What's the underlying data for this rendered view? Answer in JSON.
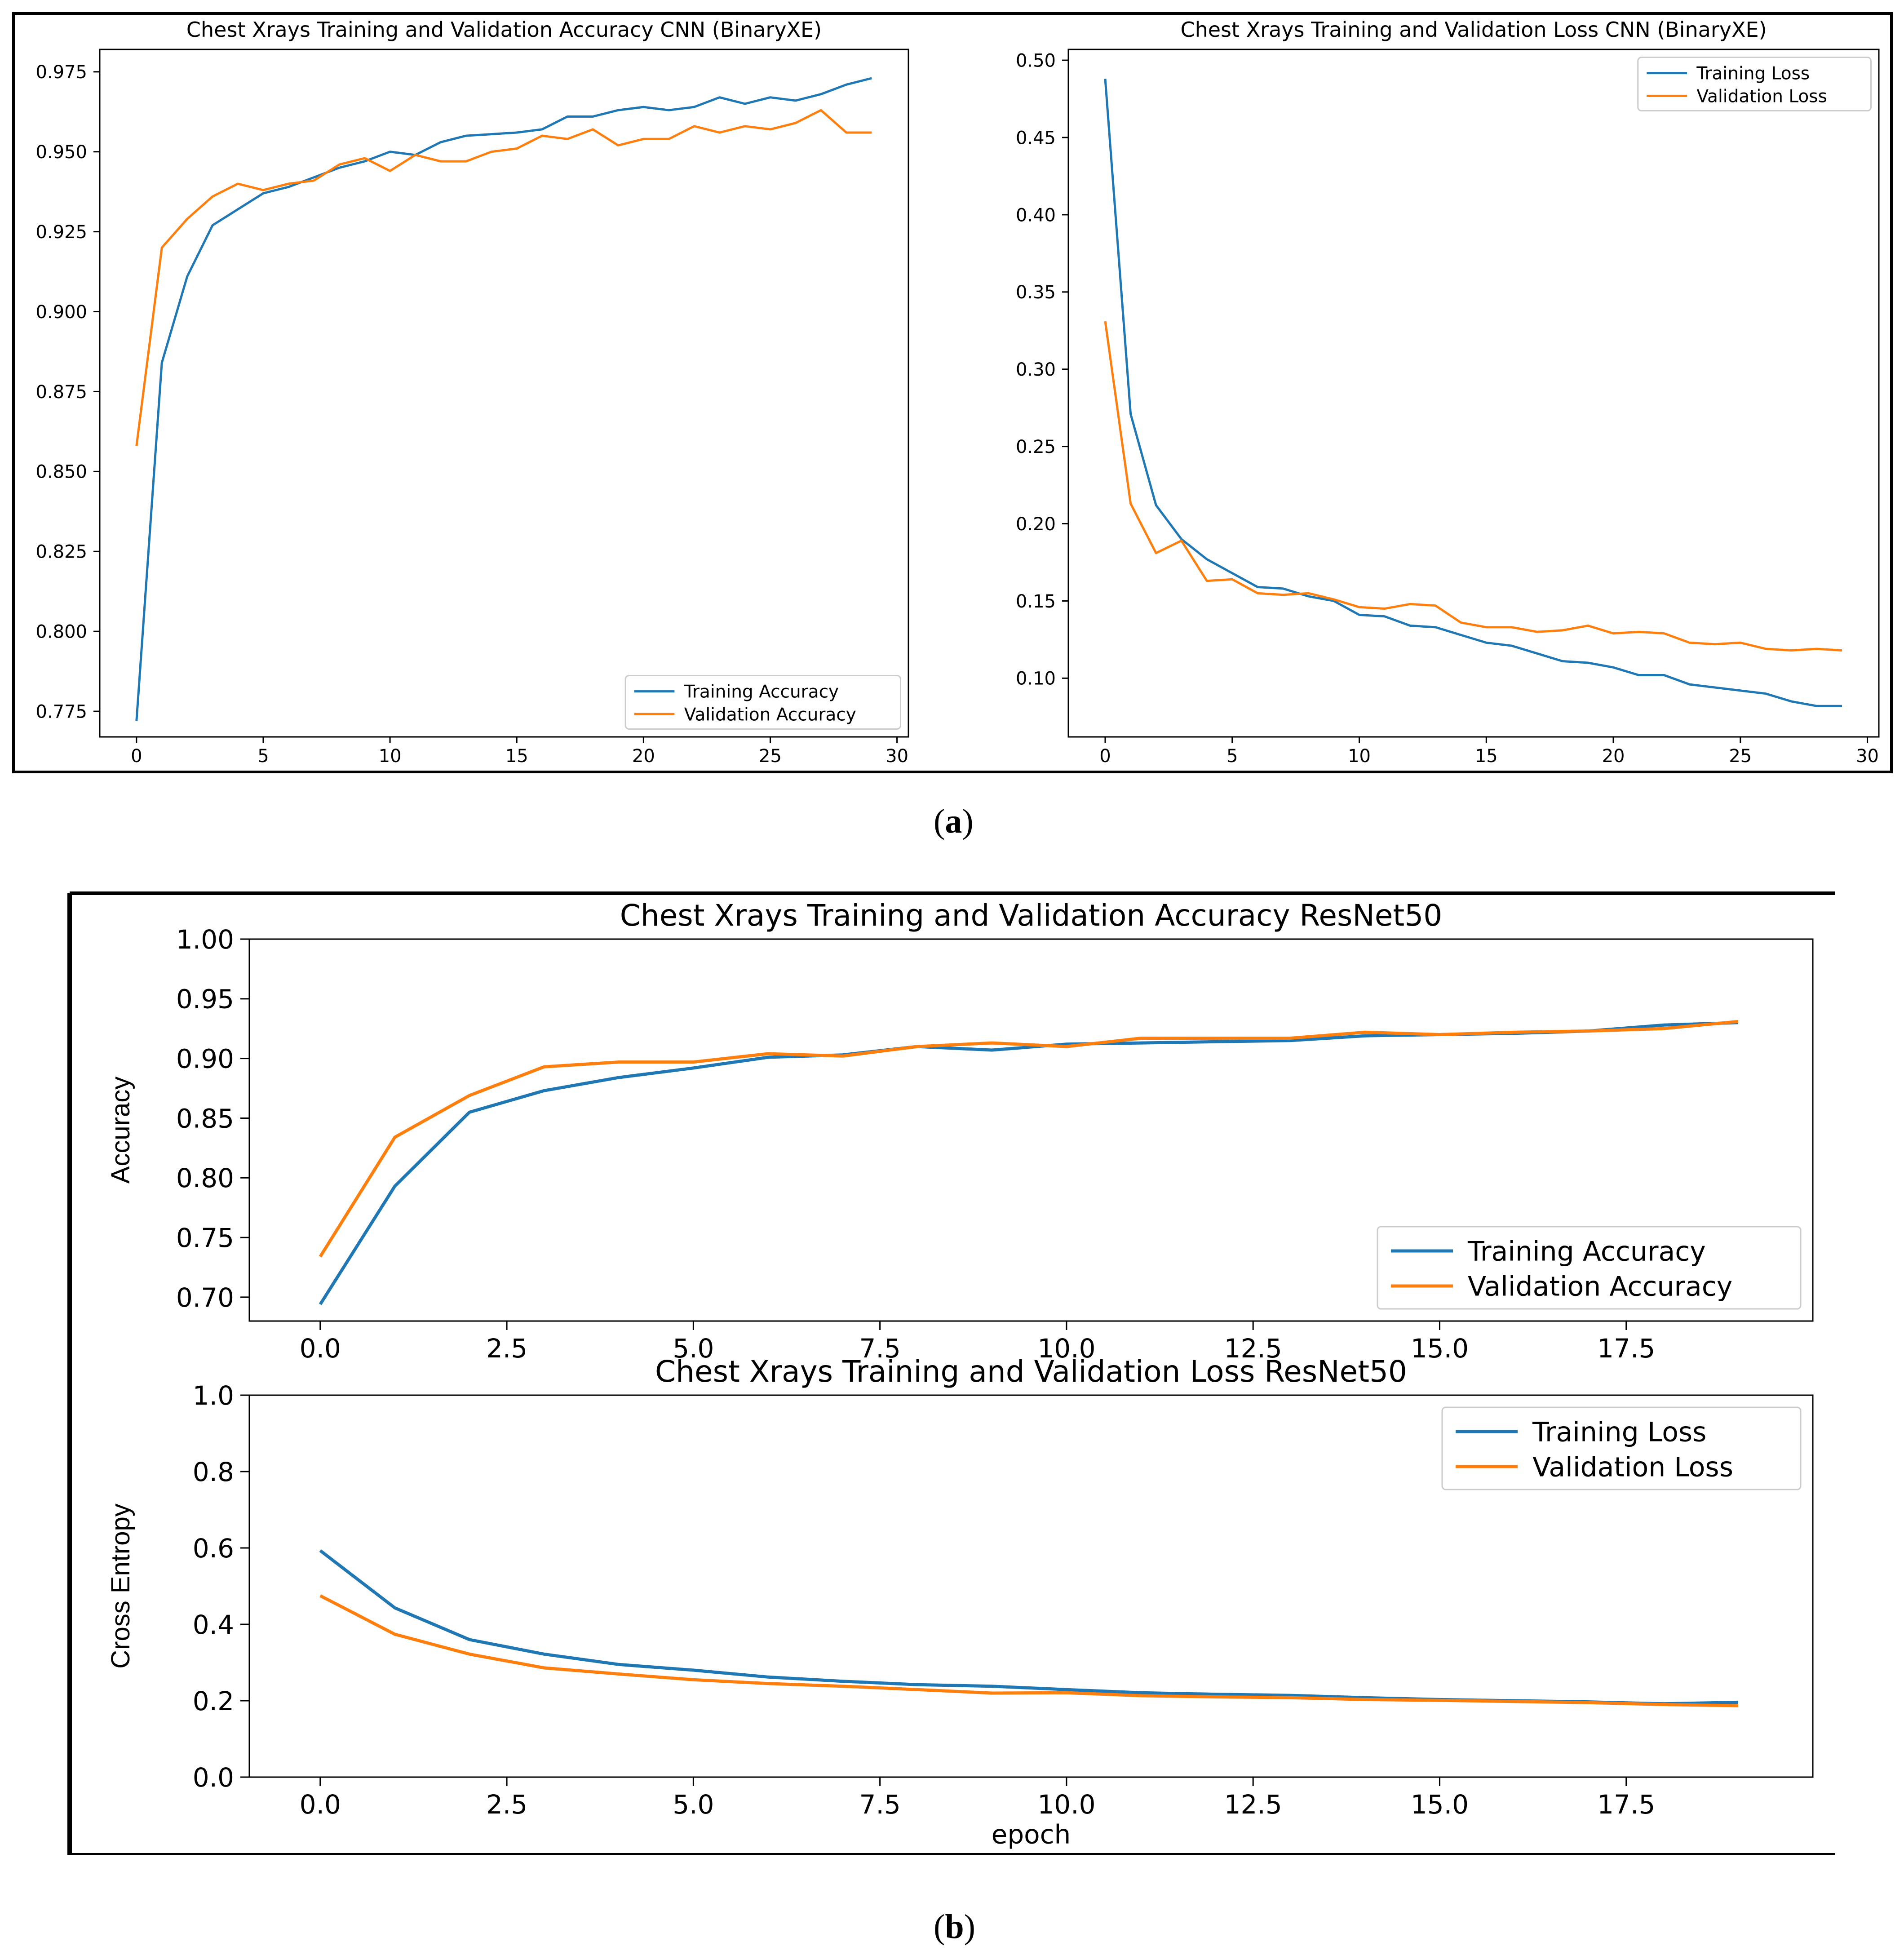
{
  "figure": {
    "caption_a": "a",
    "caption_b": "b"
  },
  "colors": {
    "training": "#1f77b4",
    "validation": "#ff7f0e",
    "axis": "#000000",
    "text": "#000000"
  },
  "chart_data": [
    {
      "id": "cnn_accuracy",
      "type": "line",
      "title": "Chest Xrays Training and Validation Accuracy CNN (BinaryXE)",
      "xlabel": "",
      "ylabel": "",
      "xlim": [
        -1.45,
        30.45
      ],
      "ylim": [
        0.767,
        0.982
      ],
      "xticks": [
        0,
        5,
        10,
        15,
        20,
        25,
        30
      ],
      "xtick_labels": [
        "0",
        "5",
        "10",
        "15",
        "20",
        "25",
        "30"
      ],
      "yticks": [
        0.775,
        0.8,
        0.825,
        0.85,
        0.875,
        0.9,
        0.925,
        0.95,
        0.975
      ],
      "ytick_labels": [
        "0.775",
        "0.800",
        "0.825",
        "0.850",
        "0.875",
        "0.900",
        "0.925",
        "0.950",
        "0.975"
      ],
      "legend": "lower-right",
      "grid": false,
      "x": [
        0,
        1,
        2,
        3,
        4,
        5,
        6,
        7,
        8,
        9,
        10,
        11,
        12,
        13,
        14,
        15,
        16,
        17,
        18,
        19,
        20,
        21,
        22,
        23,
        24,
        25,
        26,
        27,
        28,
        29
      ],
      "series": [
        {
          "name": "Training Accuracy",
          "color": "#1f77b4",
          "values": [
            0.772,
            0.884,
            0.911,
            0.927,
            0.932,
            0.937,
            0.939,
            0.942,
            0.945,
            0.947,
            0.95,
            0.949,
            0.953,
            0.955,
            0.9555,
            0.956,
            0.957,
            0.961,
            0.961,
            0.963,
            0.964,
            0.963,
            0.964,
            0.967,
            0.965,
            0.967,
            0.966,
            0.968,
            0.971,
            0.973
          ]
        },
        {
          "name": "Validation Accuracy",
          "color": "#ff7f0e",
          "values": [
            0.858,
            0.92,
            0.929,
            0.936,
            0.94,
            0.938,
            0.94,
            0.941,
            0.946,
            0.948,
            0.944,
            0.949,
            0.947,
            0.947,
            0.95,
            0.951,
            0.955,
            0.954,
            0.957,
            0.952,
            0.954,
            0.954,
            0.958,
            0.956,
            0.958,
            0.957,
            0.959,
            0.963,
            0.956,
            0.956
          ]
        }
      ]
    },
    {
      "id": "cnn_loss",
      "type": "line",
      "title": "Chest Xrays Training and Validation Loss CNN (BinaryXE)",
      "xlabel": "",
      "ylabel": "",
      "xlim": [
        -1.45,
        30.45
      ],
      "ylim": [
        0.062,
        0.507
      ],
      "xticks": [
        0,
        5,
        10,
        15,
        20,
        25,
        30
      ],
      "xtick_labels": [
        "0",
        "5",
        "10",
        "15",
        "20",
        "25",
        "30"
      ],
      "yticks": [
        0.1,
        0.15,
        0.2,
        0.25,
        0.3,
        0.35,
        0.4,
        0.45,
        0.5
      ],
      "ytick_labels": [
        "0.10",
        "0.15",
        "0.20",
        "0.25",
        "0.30",
        "0.35",
        "0.40",
        "0.45",
        "0.50"
      ],
      "legend": "upper-right",
      "grid": false,
      "x": [
        0,
        1,
        2,
        3,
        4,
        5,
        6,
        7,
        8,
        9,
        10,
        11,
        12,
        13,
        14,
        15,
        16,
        17,
        18,
        19,
        20,
        21,
        22,
        23,
        24,
        25,
        26,
        27,
        28,
        29
      ],
      "series": [
        {
          "name": "Training Loss",
          "color": "#1f77b4",
          "values": [
            0.488,
            0.271,
            0.212,
            0.19,
            0.177,
            0.168,
            0.159,
            0.158,
            0.153,
            0.15,
            0.141,
            0.14,
            0.134,
            0.133,
            0.128,
            0.123,
            0.121,
            0.116,
            0.111,
            0.11,
            0.107,
            0.102,
            0.102,
            0.096,
            0.094,
            0.092,
            0.09,
            0.085,
            0.082,
            0.082
          ]
        },
        {
          "name": "Validation Loss",
          "color": "#ff7f0e",
          "values": [
            0.331,
            0.213,
            0.181,
            0.189,
            0.163,
            0.164,
            0.155,
            0.154,
            0.155,
            0.151,
            0.146,
            0.145,
            0.148,
            0.147,
            0.136,
            0.133,
            0.133,
            0.13,
            0.131,
            0.134,
            0.129,
            0.13,
            0.129,
            0.123,
            0.122,
            0.123,
            0.119,
            0.118,
            0.119,
            0.118
          ]
        }
      ]
    },
    {
      "id": "resnet_accuracy",
      "type": "line",
      "title": "Chest Xrays Training and Validation Accuracy ResNet50",
      "xlabel": "",
      "ylabel": "Accuracy",
      "xlim": [
        -0.95,
        20.0
      ],
      "ylim": [
        0.68,
        1.0
      ],
      "xticks": [
        0,
        2.5,
        5,
        7.5,
        10,
        12.5,
        15,
        17.5
      ],
      "xtick_labels": [
        "0.0",
        "2.5",
        "5.0",
        "7.5",
        "10.0",
        "12.5",
        "15.0",
        "17.5"
      ],
      "yticks": [
        0.7,
        0.75,
        0.8,
        0.85,
        0.9,
        0.95,
        1.0
      ],
      "ytick_labels": [
        "0.70",
        "0.75",
        "0.80",
        "0.85",
        "0.90",
        "0.95",
        "1.00"
      ],
      "legend": "lower-right",
      "grid": false,
      "x": [
        0,
        1,
        2,
        3,
        4,
        5,
        6,
        7,
        8,
        9,
        10,
        11,
        12,
        13,
        14,
        15,
        16,
        17,
        18,
        19
      ],
      "series": [
        {
          "name": "Training Accuracy",
          "color": "#1f77b4",
          "values": [
            0.694,
            0.793,
            0.855,
            0.873,
            0.884,
            0.892,
            0.901,
            0.903,
            0.91,
            0.907,
            0.912,
            0.913,
            0.914,
            0.915,
            0.919,
            0.92,
            0.921,
            0.923,
            0.928,
            0.93
          ]
        },
        {
          "name": "Validation Accuracy",
          "color": "#ff7f0e",
          "values": [
            0.734,
            0.834,
            0.869,
            0.893,
            0.897,
            0.897,
            0.904,
            0.902,
            0.91,
            0.913,
            0.91,
            0.917,
            0.917,
            0.917,
            0.922,
            0.92,
            0.922,
            0.923,
            0.925,
            0.931
          ]
        }
      ]
    },
    {
      "id": "resnet_loss",
      "type": "line",
      "title": "Chest Xrays Training and Validation Loss ResNet50",
      "xlabel": "epoch",
      "ylabel": "Cross Entropy",
      "xlim": [
        -0.95,
        20.0
      ],
      "ylim": [
        0.0,
        1.0
      ],
      "xticks": [
        0,
        2.5,
        5,
        7.5,
        10,
        12.5,
        15,
        17.5
      ],
      "xtick_labels": [
        "0.0",
        "2.5",
        "5.0",
        "7.5",
        "10.0",
        "12.5",
        "15.0",
        "17.5"
      ],
      "yticks": [
        0.0,
        0.2,
        0.4,
        0.6,
        0.8,
        1.0
      ],
      "ytick_labels": [
        "0.0",
        "0.2",
        "0.4",
        "0.6",
        "0.8",
        "1.0"
      ],
      "legend": "upper-right",
      "grid": false,
      "x": [
        0,
        1,
        2,
        3,
        4,
        5,
        6,
        7,
        8,
        9,
        10,
        11,
        12,
        13,
        14,
        15,
        16,
        17,
        18,
        19
      ],
      "series": [
        {
          "name": "Training Loss",
          "color": "#1f77b4",
          "values": [
            0.593,
            0.443,
            0.36,
            0.322,
            0.295,
            0.28,
            0.262,
            0.251,
            0.242,
            0.238,
            0.229,
            0.221,
            0.217,
            0.214,
            0.208,
            0.203,
            0.2,
            0.197,
            0.192,
            0.196
          ]
        },
        {
          "name": "Validation Loss",
          "color": "#ff7f0e",
          "values": [
            0.475,
            0.374,
            0.322,
            0.286,
            0.27,
            0.255,
            0.245,
            0.238,
            0.229,
            0.22,
            0.221,
            0.213,
            0.21,
            0.208,
            0.203,
            0.201,
            0.198,
            0.195,
            0.19,
            0.187
          ]
        }
      ]
    }
  ]
}
